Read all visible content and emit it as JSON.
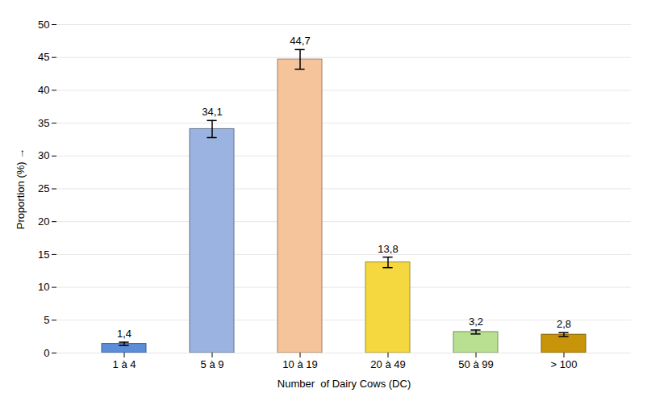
{
  "chart_data": {
    "type": "bar",
    "categories": [
      "1 à 4",
      "5 à 9",
      "10 à 19",
      "20 à 49",
      "50 à 99",
      "> 100"
    ],
    "values": [
      1.4,
      34.1,
      44.7,
      13.8,
      3.2,
      2.8
    ],
    "errors": [
      0.25,
      1.3,
      1.5,
      0.8,
      0.3,
      0.3
    ],
    "colors": [
      "#5b8dd9",
      "#9ab3e0",
      "#f5c49a",
      "#f5d840",
      "#b8e090",
      "#c8940a"
    ],
    "data_labels": true,
    "value_labels": [
      "1,4",
      "34,1",
      "44,7",
      "13,8",
      "3,2",
      "2,8"
    ],
    "xlabel": "Number  of Dairy Cows (DC)",
    "ylabel": "Proportion (%)",
    "ylim": [
      0,
      50
    ],
    "yticks": [
      0,
      5,
      10,
      15,
      20,
      25,
      30,
      35,
      40,
      45,
      50
    ],
    "grid": true
  }
}
